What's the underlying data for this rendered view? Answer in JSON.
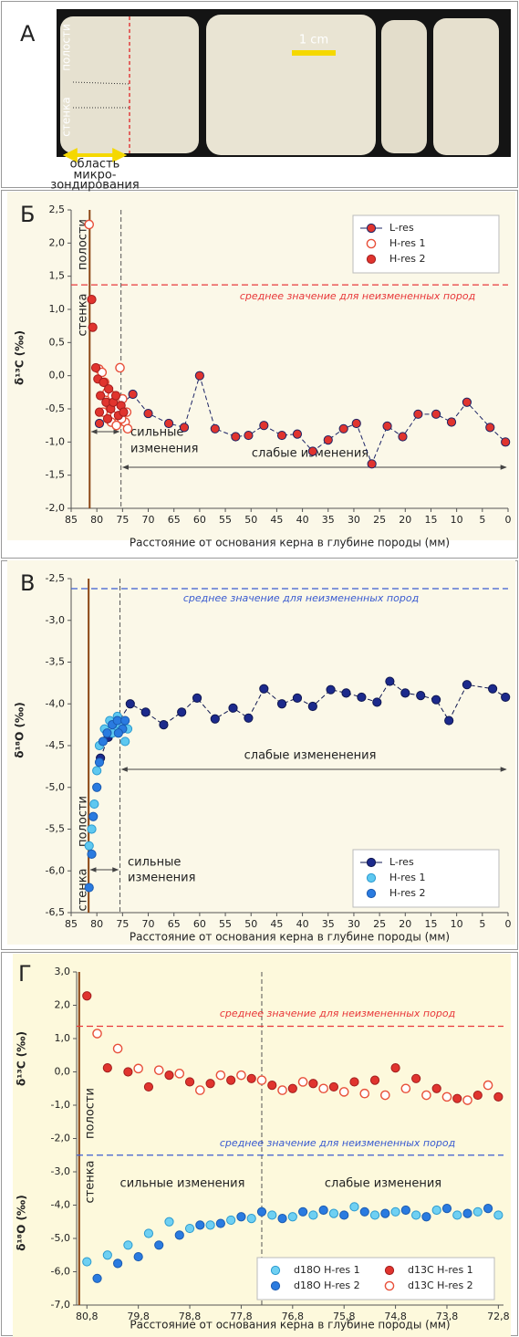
{
  "panel_a": {
    "label": "A",
    "cavity": "полости",
    "wall": "стенка",
    "scale": "1 cm",
    "probe_lines": [
      "область",
      "микро-",
      "зондирования"
    ]
  },
  "chart_data": [
    {
      "type": "scatter",
      "panel": "Б",
      "ylabel": "δ¹³C (‰)",
      "xlabel": "Расстояние от основания керна в глубине породы (мм)",
      "xlim": [
        85,
        0
      ],
      "xticks": [
        85,
        80,
        75,
        70,
        65,
        60,
        55,
        50,
        45,
        40,
        35,
        30,
        25,
        20,
        15,
        10,
        5,
        0
      ],
      "ylim": [
        -2,
        2.5
      ],
      "yticks": [
        {
          "value": -2,
          "label": "-2,0"
        },
        {
          "value": -1.5,
          "label": "-1,5"
        },
        {
          "value": -1,
          "label": "-1,0"
        },
        {
          "value": -0.5,
          "label": "-0,5"
        },
        {
          "value": 0,
          "label": "0,0"
        },
        {
          "value": 0.5,
          "label": "0,5"
        },
        {
          "value": 1,
          "label": "1,0"
        },
        {
          "value": 1.5,
          "label": "1,5"
        },
        {
          "value": 2,
          "label": "2,0"
        },
        {
          "value": 2.5,
          "label": "2,5"
        }
      ],
      "wall": 81.4,
      "boundary": 75.3,
      "mean_lines": [
        {
          "value": 1.37,
          "color": "#e8383a"
        }
      ],
      "annotations": [
        "полости",
        "стенка",
        "среднее значение для неизмененных пород",
        "сильные",
        "изменения",
        "слабые изменения"
      ],
      "legend": "upper right",
      "legend_columns": 1,
      "series": [
        {
          "name": "L-res",
          "color": "#e0342e",
          "edge": "#1c2466",
          "line": "dashed",
          "x": [
            79.5,
            73,
            70,
            66,
            63,
            60,
            57,
            53,
            50.5,
            47.5,
            44,
            41,
            38,
            35,
            32,
            29.5,
            26.5,
            23.5,
            20.5,
            17.5,
            14,
            11,
            8,
            3.5,
            0.5
          ],
          "values": [
            -0.72,
            -0.28,
            -0.57,
            -0.72,
            -0.78,
            0.0,
            -0.8,
            -0.92,
            -0.9,
            -0.75,
            -0.9,
            -0.88,
            -1.14,
            -0.97,
            -0.8,
            -0.72,
            -1.33,
            -0.76,
            -0.92,
            -0.58,
            -0.58,
            -0.7,
            -0.4,
            -0.78,
            -1.0
          ]
        },
        {
          "name": "H-res 1",
          "color": "#e8503a",
          "open": true,
          "x": [
            81.5,
            79.6,
            79,
            78.5,
            78,
            77.5,
            77,
            76.5,
            76,
            75.5,
            75,
            74.5,
            74,
            78.8,
            77.2,
            76.2,
            75.2,
            74.2
          ],
          "values": [
            2.28,
            0.1,
            0.05,
            -0.1,
            -0.25,
            -0.45,
            -0.3,
            -0.6,
            -0.5,
            0.12,
            -0.35,
            -0.7,
            -0.8,
            -0.55,
            -0.7,
            -0.75,
            -0.65,
            -0.55
          ]
        },
        {
          "name": "H-res 2",
          "color": "#e0342e",
          "edge": "#a11d1d",
          "x": [
            81,
            80.8,
            80.2,
            79.8,
            79.3,
            78.7,
            78.2,
            77.7,
            77.3,
            76.8,
            76.3,
            75.8,
            75.3,
            74.8,
            79.5,
            77.9
          ],
          "values": [
            1.15,
            0.73,
            0.12,
            -0.05,
            -0.3,
            -0.1,
            -0.4,
            -0.2,
            -0.5,
            -0.4,
            -0.3,
            -0.6,
            -0.45,
            -0.55,
            -0.55,
            -0.65
          ]
        }
      ]
    },
    {
      "type": "scatter",
      "panel": "В",
      "ylabel": "δ¹⁸O (‰)",
      "xlabel": "Расстояние от основания керна в глубине породы (мм)",
      "xlim": [
        85,
        0
      ],
      "xticks": [
        85,
        80,
        75,
        70,
        65,
        60,
        55,
        50,
        45,
        40,
        35,
        30,
        25,
        20,
        15,
        10,
        5,
        0
      ],
      "ylim": [
        -6.5,
        -2.5
      ],
      "yticks": [
        {
          "value": -6.5,
          "label": "-6,5"
        },
        {
          "value": -6,
          "label": "-6,0"
        },
        {
          "value": -5.5,
          "label": "-5,5"
        },
        {
          "value": -5,
          "label": "-5,0"
        },
        {
          "value": -4.5,
          "label": "-4,5"
        },
        {
          "value": -4,
          "label": "-4,0"
        },
        {
          "value": -3.5,
          "label": "-3,5"
        },
        {
          "value": -3,
          "label": "-3,0"
        },
        {
          "value": -2.5,
          "label": "-2,5"
        }
      ],
      "wall": 81.6,
      "boundary": 75.5,
      "mean_lines": [
        {
          "value": -2.62,
          "color": "#3a5bd0"
        }
      ],
      "annotations": [
        "полости",
        "стенка",
        "среднее  значение для неизмененных пород",
        "сильные",
        "изменения",
        "слабые измененения"
      ],
      "legend": "lower right",
      "legend_columns": 1,
      "series": [
        {
          "name": "L-res",
          "color": "#1c2a8c",
          "edge": "#0f1750",
          "line": "dashed",
          "x": [
            79.3,
            77.8,
            73.5,
            70.5,
            67,
            63.5,
            60.5,
            57,
            53.5,
            50.5,
            47.5,
            44,
            41,
            38,
            34.5,
            31.5,
            28.5,
            25.5,
            23,
            20,
            17,
            14,
            11.5,
            8,
            3,
            0.5
          ],
          "values": [
            -4.65,
            -4.4,
            -4.0,
            -4.1,
            -4.25,
            -4.1,
            -3.93,
            -4.18,
            -4.05,
            -4.17,
            -3.82,
            -4.0,
            -3.93,
            -4.03,
            -3.83,
            -3.87,
            -3.92,
            -3.98,
            -3.73,
            -3.87,
            -3.9,
            -3.95,
            -4.2,
            -3.77,
            -3.82,
            -3.92
          ]
        },
        {
          "name": "H-res 1",
          "color": "#5ec8f0",
          "edge": "#2a9ad0",
          "x": [
            81.5,
            81,
            80.5,
            80,
            79.5,
            78.5,
            77.5,
            76.5,
            75.5,
            74.5,
            74,
            76,
            77
          ],
          "values": [
            -5.7,
            -5.5,
            -5.2,
            -4.8,
            -4.5,
            -4.3,
            -4.2,
            -4.3,
            -4.25,
            -4.45,
            -4.3,
            -4.15,
            -4.35
          ]
        },
        {
          "name": "H-res 2",
          "color": "#2a7be0",
          "edge": "#1a5ab0",
          "x": [
            81.5,
            81,
            80.7,
            80,
            79.5,
            78.8,
            78,
            77,
            76,
            75,
            74.5,
            75.8
          ],
          "values": [
            -6.2,
            -5.8,
            -5.35,
            -5.0,
            -4.7,
            -4.45,
            -4.35,
            -4.25,
            -4.2,
            -4.3,
            -4.2,
            -4.35
          ]
        }
      ]
    },
    {
      "type": "scatter",
      "panel": "Г",
      "ylabels": [
        "δ¹³C (‰)",
        "δ¹⁸O (‰)"
      ],
      "xlabel": "Расстояние от основания керна в глубине породы (мм)",
      "xlim": [
        81.0,
        72.7
      ],
      "xticks": [
        {
          "value": 80.8,
          "label": "80,8"
        },
        {
          "value": 79.8,
          "label": "79,8"
        },
        {
          "value": 78.8,
          "label": "78,8"
        },
        {
          "value": 77.8,
          "label": "77,8"
        },
        {
          "value": 76.8,
          "label": "76,8"
        },
        {
          "value": 75.8,
          "label": "75,8"
        },
        {
          "value": 74.8,
          "label": "74,8"
        },
        {
          "value": 73.8,
          "label": "73,8"
        },
        {
          "value": 72.8,
          "label": "72,8"
        }
      ],
      "ylim": [
        -7,
        3
      ],
      "yticks": [
        {
          "value": -7,
          "label": "-7,0"
        },
        {
          "value": -6,
          "label": "-6,0"
        },
        {
          "value": -5,
          "label": "-5,0"
        },
        {
          "value": -4,
          "label": "-4,0"
        },
        {
          "value": -3,
          "label": "-3,0"
        },
        {
          "value": -2,
          "label": "-2,0"
        },
        {
          "value": -1,
          "label": "-1,0"
        },
        {
          "value": 0,
          "label": "0,0"
        },
        {
          "value": 1,
          "label": "1,0"
        },
        {
          "value": 2,
          "label": "2,0"
        },
        {
          "value": 3,
          "label": "3,0"
        }
      ],
      "wall": 80.95,
      "boundary": 77.4,
      "mean_lines": [
        {
          "value": 1.37,
          "color": "#e8383a"
        },
        {
          "value": -2.5,
          "color": "#3a5bd0"
        }
      ],
      "annotations": [
        "полости",
        "стенка",
        "среднее значение для неизмененных пород",
        "среднее значение для неизмененных пород",
        "сильные изменения",
        "слабые изменения"
      ],
      "legend": "lower right",
      "legend_columns": 2,
      "series": [
        {
          "name": "d18O H-res 1",
          "color": "#6fd0f2",
          "edge": "#2a9ad0",
          "x": [
            80.8,
            80.4,
            80.0,
            79.6,
            79.2,
            78.8,
            78.4,
            78.0,
            77.6,
            77.2,
            76.8,
            76.4,
            76.0,
            75.6,
            75.2,
            74.8,
            74.4,
            74.0,
            73.6,
            73.2,
            72.8
          ],
          "values": [
            -5.7,
            -5.5,
            -5.2,
            -4.85,
            -4.5,
            -4.7,
            -4.6,
            -4.45,
            -4.4,
            -4.3,
            -4.35,
            -4.3,
            -4.25,
            -4.05,
            -4.3,
            -4.2,
            -4.3,
            -4.15,
            -4.3,
            -4.2,
            -4.3
          ]
        },
        {
          "name": "d18O H-res 2",
          "color": "#2a7be0",
          "edge": "#1a5ab0",
          "x": [
            80.6,
            80.2,
            79.8,
            79.4,
            79.0,
            78.6,
            78.2,
            77.8,
            77.4,
            77.0,
            76.6,
            76.2,
            75.8,
            75.4,
            75.0,
            74.6,
            74.2,
            73.8,
            73.4,
            73.0
          ],
          "values": [
            -6.2,
            -5.75,
            -5.55,
            -5.2,
            -4.9,
            -4.6,
            -4.55,
            -4.35,
            -4.2,
            -4.4,
            -4.2,
            -4.15,
            -4.3,
            -4.2,
            -4.25,
            -4.15,
            -4.35,
            -4.1,
            -4.25,
            -4.1
          ]
        },
        {
          "name": "d13C H-res 1",
          "color": "#e0342e",
          "edge": "#a11d1d",
          "x": [
            80.8,
            80.4,
            80.0,
            79.6,
            79.2,
            78.8,
            78.4,
            78.0,
            77.6,
            77.2,
            76.8,
            76.4,
            76.0,
            75.6,
            75.2,
            74.8,
            74.4,
            74.0,
            73.6,
            73.2,
            72.8
          ],
          "values": [
            2.28,
            0.12,
            0.0,
            -0.45,
            -0.1,
            -0.3,
            -0.35,
            -0.25,
            -0.2,
            -0.4,
            -0.5,
            -0.35,
            -0.45,
            -0.3,
            -0.25,
            0.12,
            -0.2,
            -0.5,
            -0.8,
            -0.7,
            -0.75
          ]
        },
        {
          "name": "d13C H-res 2",
          "color": "#e8503a",
          "open": true,
          "x": [
            80.6,
            80.2,
            79.8,
            79.4,
            79.0,
            78.6,
            78.2,
            77.8,
            77.4,
            77.0,
            76.6,
            76.2,
            75.8,
            75.4,
            75.0,
            74.6,
            74.2,
            73.8,
            73.4,
            73.0
          ],
          "values": [
            1.15,
            0.7,
            0.1,
            0.05,
            -0.05,
            -0.55,
            -0.1,
            -0.1,
            -0.25,
            -0.55,
            -0.3,
            -0.5,
            -0.6,
            -0.65,
            -0.7,
            -0.5,
            -0.7,
            -0.75,
            -0.85,
            -0.4
          ]
        }
      ]
    }
  ]
}
